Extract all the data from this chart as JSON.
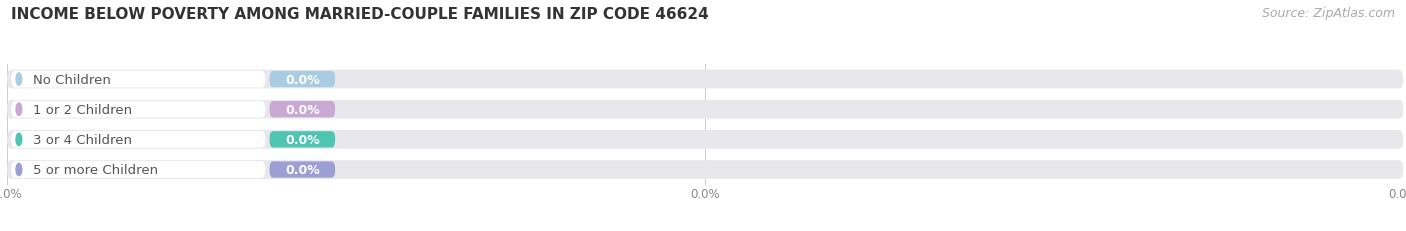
{
  "title": "INCOME BELOW POVERTY AMONG MARRIED-COUPLE FAMILIES IN ZIP CODE 46624",
  "source": "Source: ZipAtlas.com",
  "categories": [
    "No Children",
    "1 or 2 Children",
    "3 or 4 Children",
    "5 or more Children"
  ],
  "values": [
    0.0,
    0.0,
    0.0,
    0.0
  ],
  "bar_colors": [
    "#a8cce0",
    "#c9a8d4",
    "#4ec5b0",
    "#9b9fd4"
  ],
  "background_color": "#ffffff",
  "bar_bg_color": "#e8e8ec",
  "title_fontsize": 11,
  "source_fontsize": 9,
  "label_fontsize": 9.5,
  "value_fontsize": 9
}
